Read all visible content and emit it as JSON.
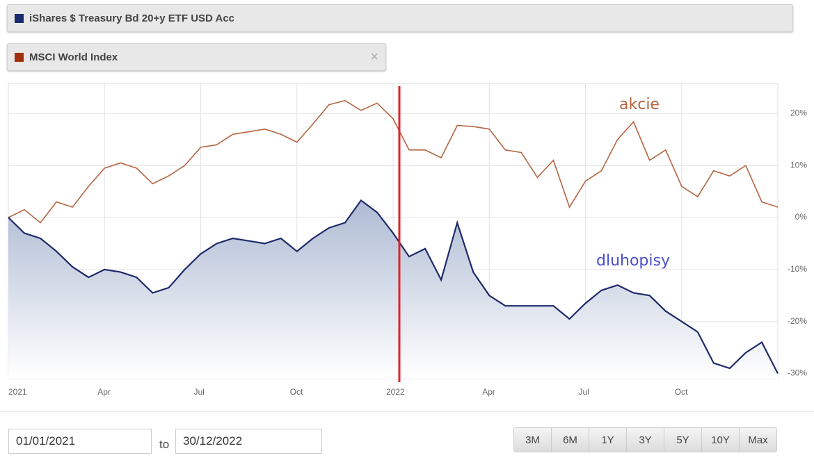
{
  "legend": [
    {
      "name": "iShares $ Treasury Bd 20+y ETF USD Acc",
      "color": "#1a2a6c"
    },
    {
      "name": "MSCI World Index",
      "color": "#a1300e"
    }
  ],
  "chart_data": {
    "type": "line",
    "categories": [
      "2021",
      null,
      null,
      null,
      null,
      null,
      "Apr",
      null,
      null,
      null,
      null,
      null,
      "Jul",
      null,
      null,
      null,
      null,
      null,
      "Oct",
      null,
      null,
      null,
      null,
      null,
      "2022",
      null,
      null,
      null,
      null,
      null,
      "Apr",
      null,
      null,
      null,
      null,
      null,
      "Jul",
      null,
      null,
      null,
      null,
      null,
      "Oct",
      null,
      null,
      null,
      null,
      null,
      null
    ],
    "series": [
      {
        "name": "akcie",
        "color": "#b5653f",
        "area": false,
        "values": [
          0,
          1.5,
          -1,
          3,
          2,
          6,
          9.5,
          10.5,
          9.5,
          6.5,
          8,
          10,
          13.5,
          14,
          16,
          16.5,
          17,
          16,
          14.5,
          18,
          21.7,
          22.5,
          20.6,
          22,
          19,
          13,
          13,
          11.5,
          17.7,
          17.5,
          17,
          13,
          12.5,
          7.7,
          11,
          2,
          7,
          9,
          15,
          18.4,
          11,
          13,
          6,
          4,
          9,
          8,
          10,
          3,
          2
        ]
      },
      {
        "name": "dluhopisy",
        "color": "#1f2a6b",
        "area": true,
        "values": [
          0,
          -3,
          -4,
          -6.5,
          -9.5,
          -11.5,
          -10,
          -10.5,
          -11.5,
          -14.5,
          -13.5,
          -10,
          -7,
          -5,
          -4,
          -4.5,
          -5,
          -4,
          -6.5,
          -4,
          -2,
          -1,
          3.3,
          1,
          -3,
          -7.5,
          -6,
          -12,
          -1,
          -10.5,
          -15,
          -17,
          -17,
          -17,
          -17,
          -19.5,
          -16.5,
          -14,
          -13,
          -14.5,
          -15,
          -18,
          -20,
          -22,
          -28,
          -29,
          -26,
          -24,
          -30
        ]
      }
    ],
    "ylim": [
      -31,
      25.8
    ],
    "yticks": [
      {
        "value": 20,
        "label": "20%"
      },
      {
        "value": 10,
        "label": "10%"
      },
      {
        "value": 0,
        "label": "0%"
      },
      {
        "value": -10,
        "label": "-10%"
      },
      {
        "value": -20,
        "label": "-20%"
      },
      {
        "value": -30,
        "label": "-30%"
      }
    ],
    "grid": true
  },
  "controls": {
    "from": "01/01/2021",
    "to_label": "to",
    "to": "30/12/2022",
    "ranges": [
      "3M",
      "6M",
      "1Y",
      "3Y",
      "5Y",
      "10Y",
      "Max"
    ]
  }
}
